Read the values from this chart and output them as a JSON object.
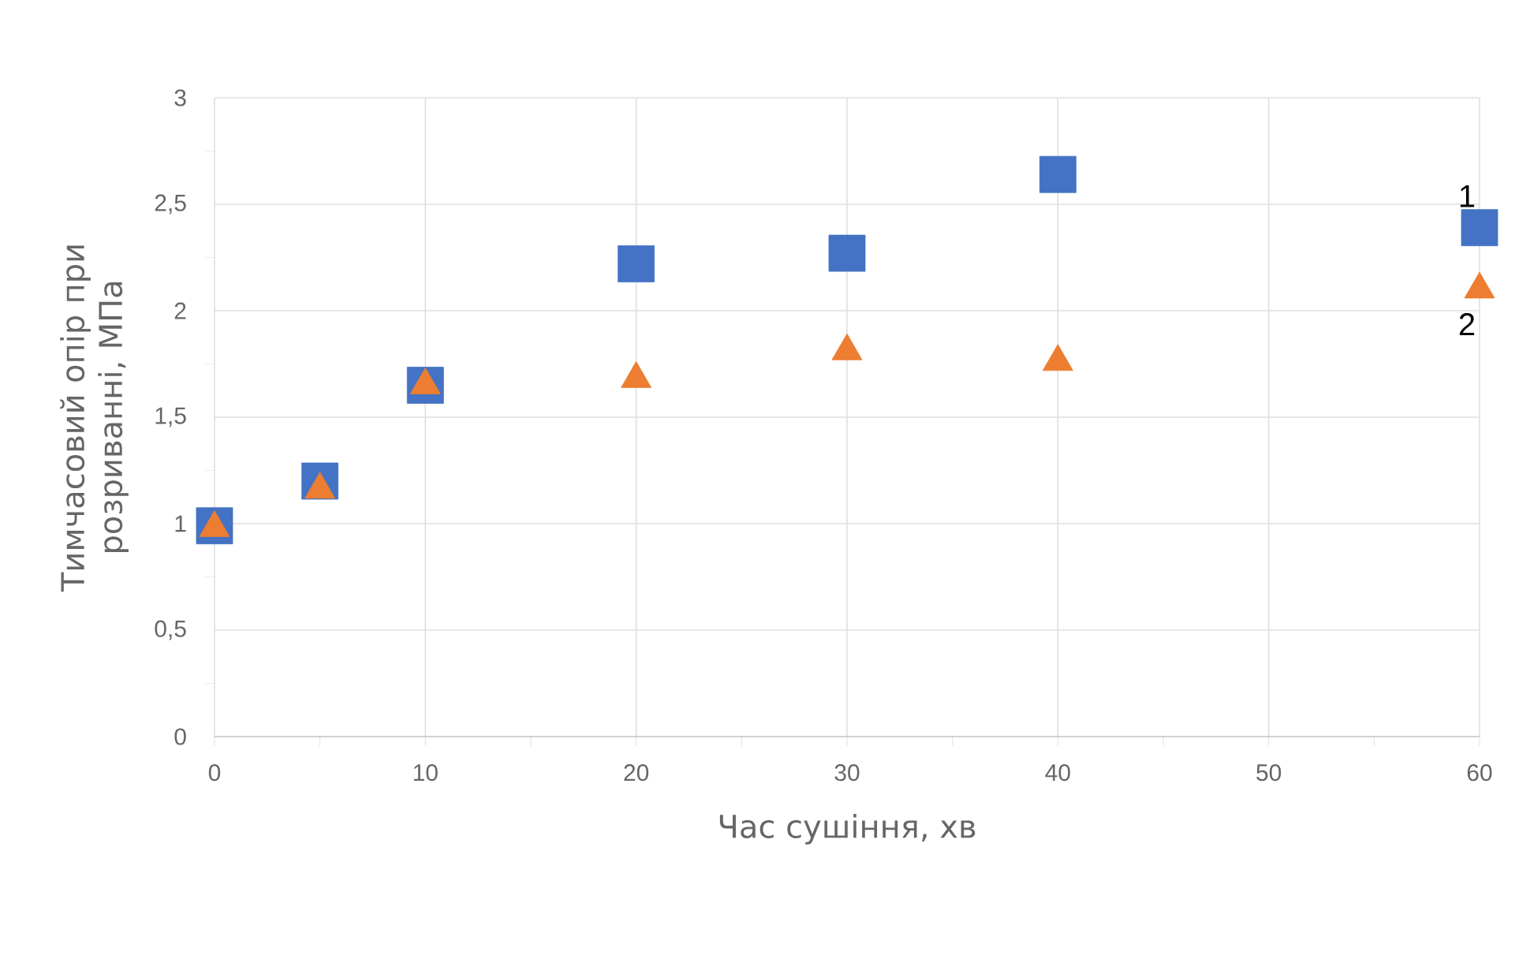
{
  "chart_data": {
    "type": "scatter",
    "xlabel": "Час сушіння, хв",
    "ylabel": "Тимчасовий опір при розриванні, МПа",
    "x": [
      0,
      5,
      10,
      20,
      30,
      40,
      60
    ],
    "series": [
      {
        "name": "1",
        "color": "#4472c4",
        "marker": "square",
        "values": [
          0.99,
          1.2,
          1.65,
          2.22,
          2.27,
          2.64,
          2.39
        ]
      },
      {
        "name": "2",
        "color": "#ed7d31",
        "marker": "triangle",
        "values": [
          0.98,
          1.16,
          1.65,
          1.68,
          1.81,
          1.76,
          2.1
        ]
      }
    ],
    "xlim": [
      0,
      60
    ],
    "xticks": [
      0,
      10,
      20,
      30,
      40,
      50,
      60
    ],
    "ylim": [
      0,
      3
    ],
    "yticks": [
      0,
      {
        "value": 0.5,
        "label": "0,5"
      },
      1,
      {
        "value": 1.5,
        "label": "1,5"
      },
      2,
      {
        "value": 2.5,
        "label": "2,5"
      },
      3
    ],
    "grid": true
  }
}
